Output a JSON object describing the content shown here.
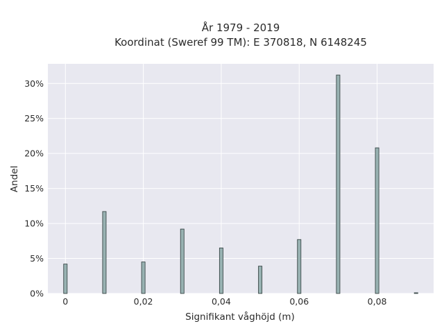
{
  "chart_data": {
    "type": "bar",
    "title": "År 1979 - 2019",
    "subtitle": "Koordinat (Sweref 99 TM): E 370818, N 6148245",
    "xlabel": "Signifikant våghöjd (m)",
    "ylabel": "Andel",
    "x": [
      0,
      0.01,
      0.02,
      0.03,
      0.04,
      0.05,
      0.06,
      0.07,
      0.08,
      0.09
    ],
    "values": [
      4.2,
      11.7,
      4.5,
      9.2,
      6.5,
      3.9,
      7.7,
      31.2,
      20.8,
      0.1
    ],
    "xlim": [
      -0.0045,
      0.0945
    ],
    "ylim": [
      0,
      32.8
    ],
    "x_ticks": [
      {
        "value": 0,
        "label": "0"
      },
      {
        "value": 0.02,
        "label": "0,02"
      },
      {
        "value": 0.04,
        "label": "0,04"
      },
      {
        "value": 0.06,
        "label": "0,06"
      },
      {
        "value": 0.08,
        "label": "0,08"
      }
    ],
    "y_ticks": [
      {
        "value": 0,
        "label": "0%"
      },
      {
        "value": 5,
        "label": "5%"
      },
      {
        "value": 10,
        "label": "10%"
      },
      {
        "value": 15,
        "label": "15%"
      },
      {
        "value": 20,
        "label": "20%"
      },
      {
        "value": 25,
        "label": "25%"
      },
      {
        "value": 30,
        "label": "30%"
      }
    ],
    "bar_color": "#98b2b2",
    "bar_edge_color": "#3a4848",
    "plot_background": "#e8e8f0",
    "grid": true
  }
}
